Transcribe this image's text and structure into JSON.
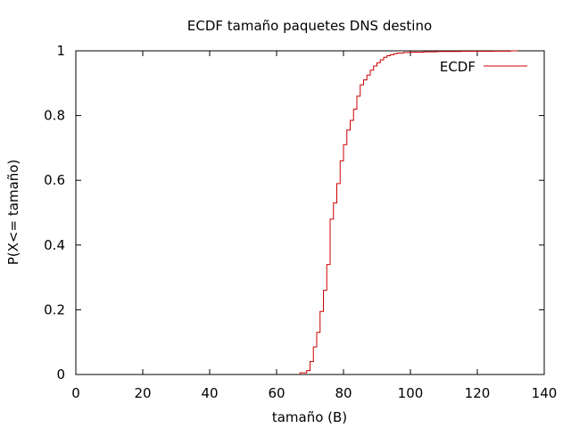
{
  "chart_data": {
    "type": "line",
    "step": true,
    "title": "ECDF tamaño paquetes DNS destino",
    "xlabel": "tamaño (B)",
    "ylabel": "P(X<= tamaño)",
    "xlim": [
      0,
      140
    ],
    "ylim": [
      0,
      1
    ],
    "xticks": [
      "0",
      "20",
      "40",
      "60",
      "80",
      "100",
      "120",
      "140"
    ],
    "yticks": [
      "0",
      "0.2",
      "0.4",
      "0.6",
      "0.8",
      "1"
    ],
    "grid": false,
    "legend_position": "top-right",
    "series": [
      {
        "name": "ECDF",
        "color": "#cc0000",
        "x": [
          67,
          69,
          70,
          71,
          72,
          73,
          74,
          75,
          76,
          77,
          78,
          79,
          80,
          81,
          82,
          83,
          84,
          85,
          86,
          87,
          88,
          89,
          90,
          91,
          92,
          93,
          94,
          95,
          96,
          98,
          100,
          104,
          108,
          115,
          125,
          130,
          132
        ],
        "y": [
          0.005,
          0.012,
          0.04,
          0.085,
          0.13,
          0.195,
          0.26,
          0.34,
          0.48,
          0.53,
          0.59,
          0.66,
          0.71,
          0.755,
          0.785,
          0.82,
          0.86,
          0.895,
          0.91,
          0.925,
          0.94,
          0.953,
          0.963,
          0.972,
          0.98,
          0.985,
          0.988,
          0.991,
          0.993,
          0.995,
          0.996,
          0.997,
          0.998,
          0.9985,
          0.999,
          1.0,
          1.0
        ]
      }
    ]
  }
}
